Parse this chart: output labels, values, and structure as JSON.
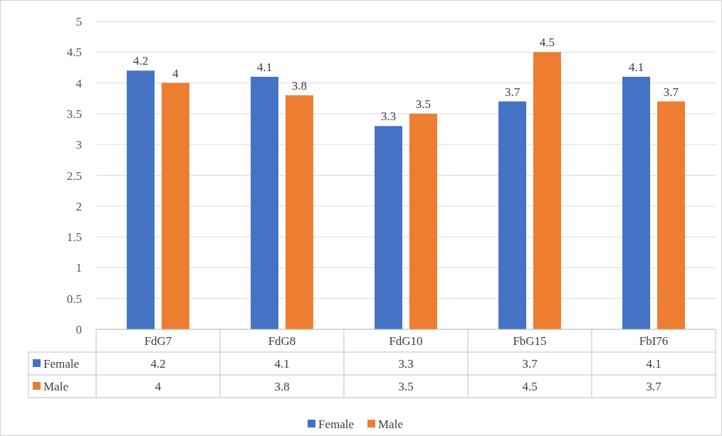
{
  "chart_data": {
    "type": "bar",
    "categories": [
      "FdG7",
      "FdG8",
      "FdG10",
      "FbG15",
      "FbI76"
    ],
    "series": [
      {
        "name": "Female",
        "color": "#4472c4",
        "values": [
          4.2,
          4.1,
          3.3,
          3.7,
          4.1
        ]
      },
      {
        "name": "Male",
        "color": "#ed7d31",
        "values": [
          4,
          3.8,
          3.5,
          4.5,
          3.7
        ]
      }
    ],
    "annotations": [
      "4.2",
      "4.1",
      "3.3",
      "3.7",
      "4.1",
      "4",
      "3.8",
      "3.5",
      "4.5",
      "3.7"
    ],
    "ylim": [
      0,
      5
    ],
    "yticks": [
      0,
      0.5,
      1,
      1.5,
      2,
      2.5,
      3,
      3.5,
      4,
      4.5,
      5
    ],
    "grid": "y",
    "legend": "bottom",
    "data_labels": true
  }
}
